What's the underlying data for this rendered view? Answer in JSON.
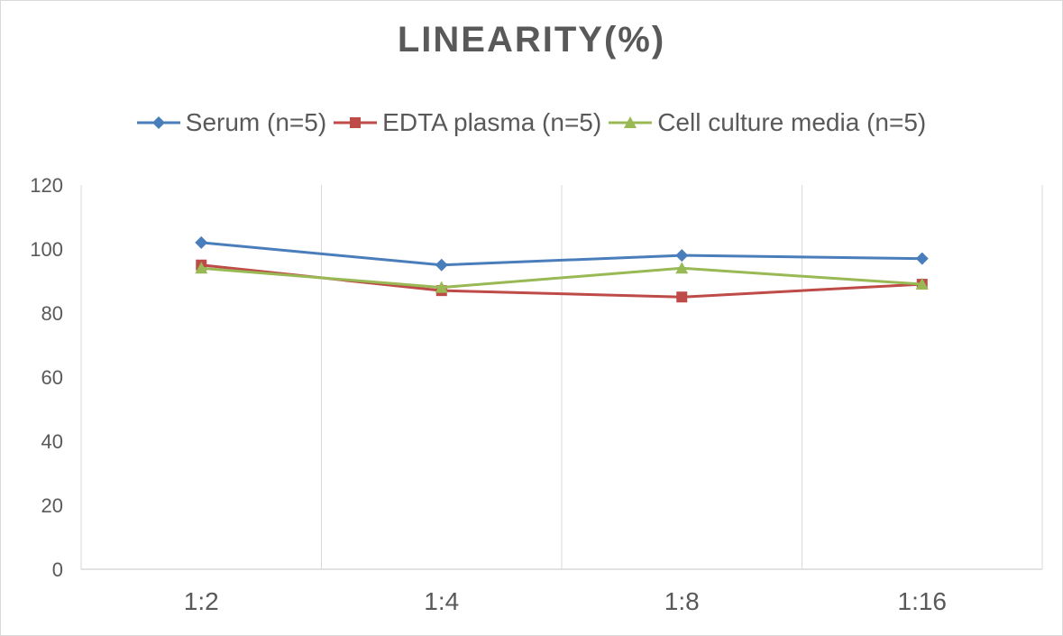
{
  "chart_data": {
    "type": "line",
    "title": "LINEARITY(%)",
    "categories": [
      "1:2",
      "1:4",
      "1:8",
      "1:16"
    ],
    "ylim": [
      0,
      120
    ],
    "yticks": [
      0,
      20,
      40,
      60,
      80,
      100,
      120
    ],
    "grid": "vertical",
    "legend_position": "top",
    "series": [
      {
        "name": "Serum (n=5)",
        "values": [
          102,
          95,
          98,
          97
        ],
        "color": "#4a7ebb",
        "marker": "diamond"
      },
      {
        "name": "EDTA plasma (n=5)",
        "values": [
          95,
          87,
          85,
          89
        ],
        "color": "#be4b48",
        "marker": "square"
      },
      {
        "name": "Cell culture media (n=5)",
        "values": [
          94,
          88,
          94,
          89
        ],
        "color": "#98b954",
        "marker": "triangle"
      }
    ]
  }
}
